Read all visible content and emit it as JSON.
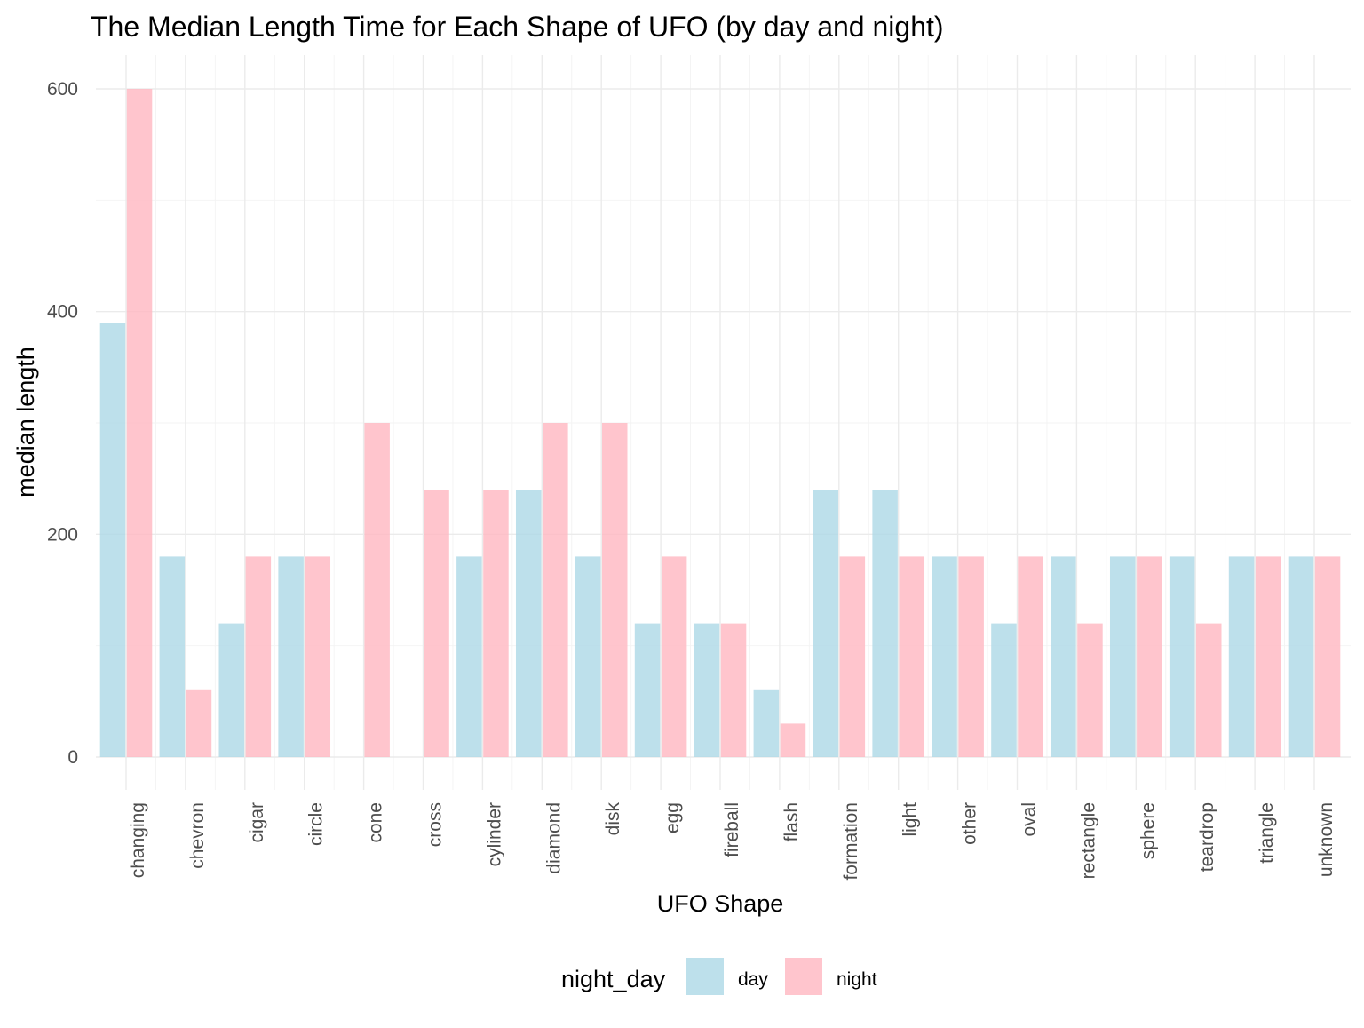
{
  "chart_data": {
    "type": "bar",
    "title": "The Median Length Time for Each Shape of UFO (by day and night)",
    "xlabel": "UFO Shape",
    "ylabel": "median length",
    "ylim": [
      -30,
      630
    ],
    "yticks": [
      0,
      200,
      400,
      600
    ],
    "grid": true,
    "legend_position": "bottom",
    "legend_title": "night_day",
    "categories": [
      "changing",
      "chevron",
      "cigar",
      "circle",
      "cone",
      "cross",
      "cylinder",
      "diamond",
      "disk",
      "egg",
      "fireball",
      "flash",
      "formation",
      "light",
      "other",
      "oval",
      "rectangle",
      "sphere",
      "teardrop",
      "triangle",
      "unknown"
    ],
    "series": [
      {
        "name": "day",
        "color": "#ADD8E6",
        "values": [
          390,
          180,
          120,
          180,
          null,
          null,
          180,
          240,
          180,
          120,
          120,
          60,
          240,
          240,
          180,
          120,
          180,
          180,
          180,
          180,
          180
        ]
      },
      {
        "name": "night",
        "color": "#FFB6C1",
        "values": [
          600,
          60,
          180,
          180,
          300,
          240,
          240,
          300,
          300,
          180,
          120,
          30,
          180,
          180,
          180,
          180,
          120,
          180,
          120,
          180,
          180
        ]
      }
    ]
  }
}
